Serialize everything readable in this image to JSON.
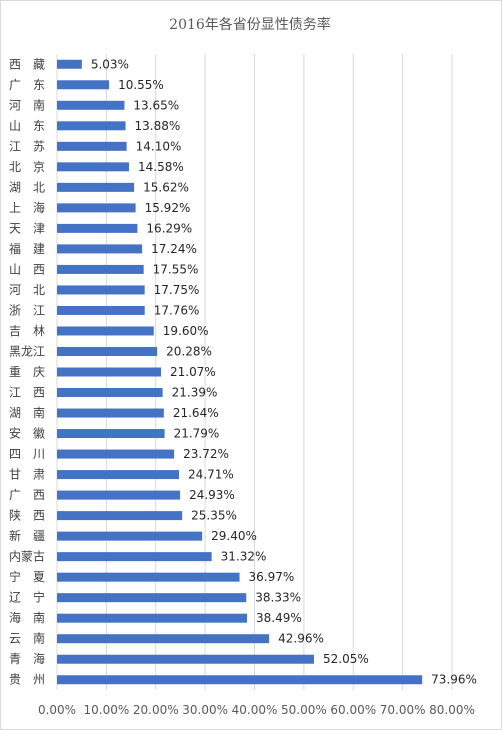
{
  "chart_data": {
    "type": "bar",
    "orientation": "horizontal",
    "title": "2016年各省份显性债务率",
    "xlabel": "",
    "ylabel": "",
    "xlim": [
      0,
      80
    ],
    "x_ticks": [
      "0.00%",
      "10.00%",
      "20.00%",
      "30.00%",
      "40.00%",
      "50.00%",
      "60.00%",
      "70.00%",
      "80.00%"
    ],
    "grid": true,
    "bar_color": "#4472c4",
    "categories": [
      "西　藏",
      "广　东",
      "河　南",
      "山　东",
      "江　苏",
      "北　京",
      "湖　北",
      "上　海",
      "天　津",
      "福　建",
      "山　西",
      "河　北",
      "浙　江",
      "吉　林",
      "黑龙江",
      "重　庆",
      "江　西",
      "湖　南",
      "安　徽",
      "四　川",
      "甘　肃",
      "广　西",
      "陕　西",
      "新　疆",
      "内蒙古",
      "宁　夏",
      "辽　宁",
      "海　南",
      "云　南",
      "青　海",
      "贵　州"
    ],
    "values": [
      5.03,
      10.55,
      13.65,
      13.88,
      14.1,
      14.58,
      15.62,
      15.92,
      16.29,
      17.24,
      17.55,
      17.75,
      17.76,
      19.6,
      20.28,
      21.07,
      21.39,
      21.64,
      21.79,
      23.72,
      24.71,
      24.93,
      25.35,
      29.4,
      31.32,
      36.97,
      38.33,
      38.49,
      42.96,
      52.05,
      73.96
    ],
    "value_labels": [
      "5.03%",
      "10.55%",
      "13.65%",
      "13.88%",
      "14.10%",
      "14.58%",
      "15.62%",
      "15.92%",
      "16.29%",
      "17.24%",
      "17.55%",
      "17.75%",
      "17.76%",
      "19.60%",
      "20.28%",
      "21.07%",
      "21.39%",
      "21.64%",
      "21.79%",
      "23.72%",
      "24.71%",
      "24.93%",
      "25.35%",
      "29.40%",
      "31.32%",
      "36.97%",
      "38.33%",
      "38.49%",
      "42.96%",
      "52.05%",
      "73.96%"
    ]
  }
}
